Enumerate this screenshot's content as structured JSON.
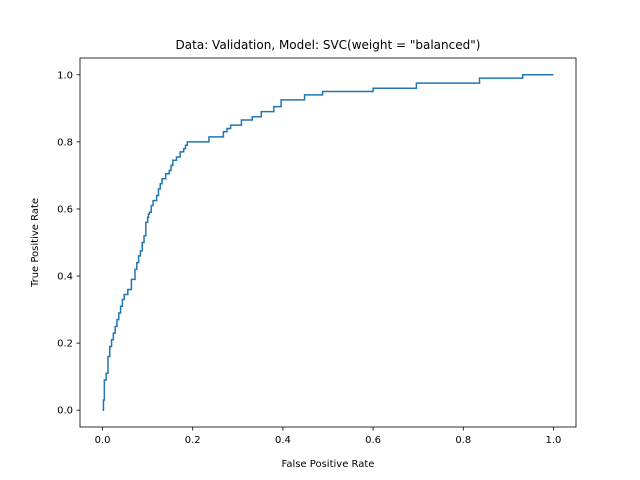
{
  "chart_data": {
    "type": "line",
    "title": "Data: Validation, Model: SVC(weight = \"balanced\")",
    "xlabel": "False Positive Rate",
    "ylabel": "True Positive Rate",
    "xlim": [
      -0.05,
      1.05
    ],
    "ylim": [
      -0.05,
      1.05
    ],
    "xticks": [
      0.0,
      0.2,
      0.4,
      0.6,
      0.8,
      1.0
    ],
    "xtick_labels": [
      "0.0",
      "0.2",
      "0.4",
      "0.6",
      "0.8",
      "1.0"
    ],
    "yticks": [
      0.0,
      0.2,
      0.4,
      0.6,
      0.8,
      1.0
    ],
    "ytick_labels": [
      "0.0",
      "0.2",
      "0.4",
      "0.6",
      "0.8",
      "1.0"
    ],
    "grid": false,
    "legend": null,
    "series": [
      {
        "color": "#1f77b4",
        "step": true,
        "x": [
          0.0,
          0.002,
          0.004,
          0.008,
          0.012,
          0.016,
          0.02,
          0.024,
          0.028,
          0.032,
          0.036,
          0.04,
          0.044,
          0.048,
          0.056,
          0.064,
          0.072,
          0.076,
          0.08,
          0.084,
          0.088,
          0.092,
          0.096,
          0.1,
          0.102,
          0.104,
          0.108,
          0.112,
          0.12,
          0.124,
          0.128,
          0.132,
          0.14,
          0.148,
          0.152,
          0.156,
          0.164,
          0.172,
          0.18,
          0.184,
          0.188,
          0.192,
          0.196,
          0.2,
          0.236,
          0.268,
          0.276,
          0.284,
          0.308,
          0.332,
          0.352,
          0.38,
          0.396,
          0.448,
          0.488,
          0.6,
          0.696,
          0.836,
          0.932,
          1.0
        ],
        "y": [
          0.0,
          0.03,
          0.09,
          0.11,
          0.16,
          0.19,
          0.21,
          0.23,
          0.25,
          0.27,
          0.29,
          0.31,
          0.33,
          0.345,
          0.36,
          0.39,
          0.42,
          0.44,
          0.46,
          0.475,
          0.5,
          0.52,
          0.56,
          0.575,
          0.585,
          0.59,
          0.61,
          0.625,
          0.64,
          0.66,
          0.675,
          0.69,
          0.705,
          0.715,
          0.73,
          0.745,
          0.755,
          0.77,
          0.78,
          0.79,
          0.8,
          0.8,
          0.8,
          0.8,
          0.815,
          0.83,
          0.84,
          0.85,
          0.865,
          0.875,
          0.89,
          0.905,
          0.925,
          0.94,
          0.95,
          0.96,
          0.975,
          0.99,
          1.0,
          1.0
        ]
      }
    ]
  }
}
